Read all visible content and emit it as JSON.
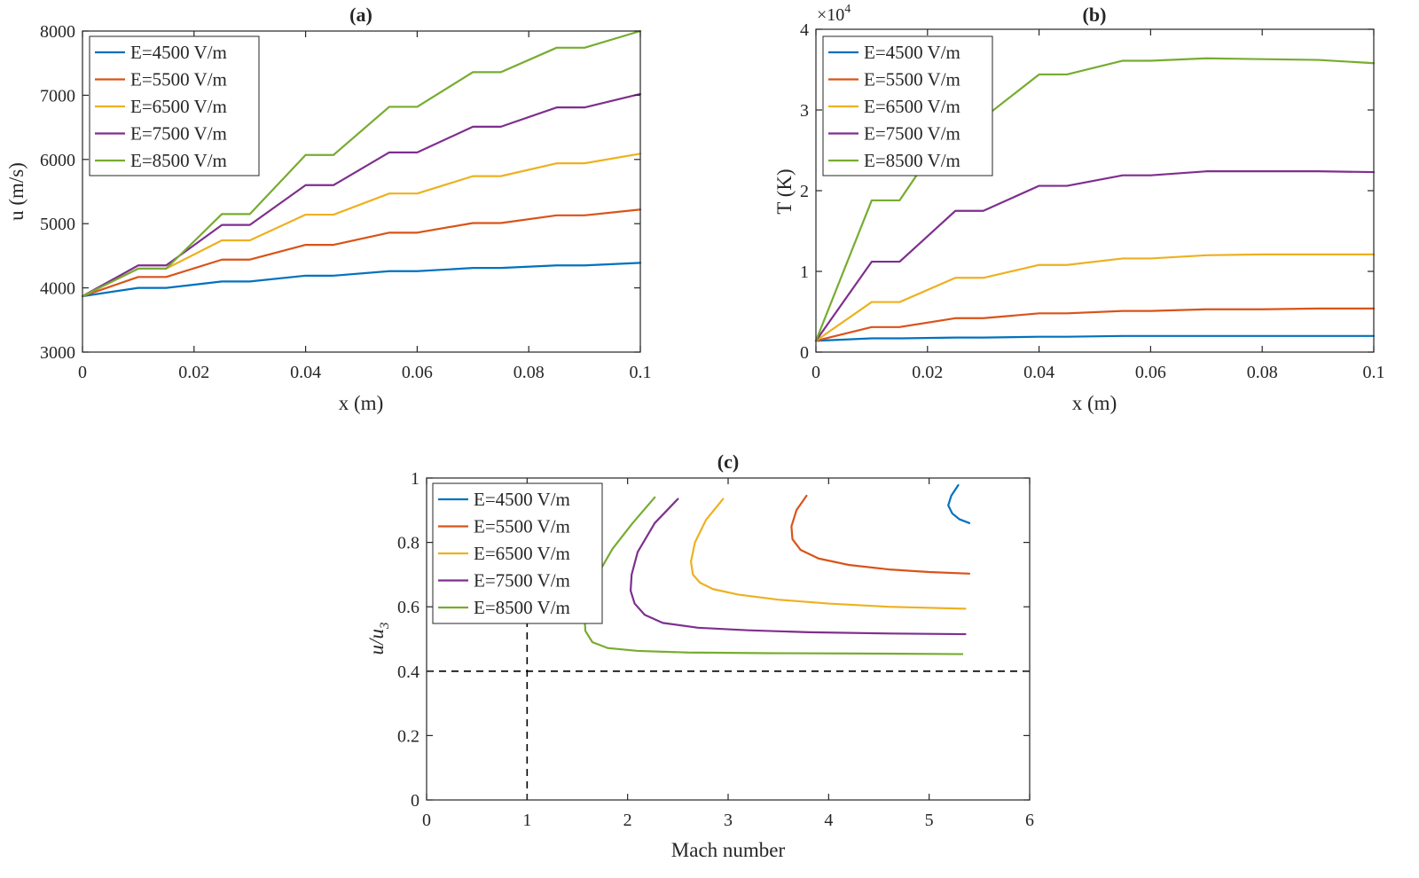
{
  "chart_data": [
    {
      "id": "a",
      "type": "line",
      "title": "(a)",
      "xlabel": "x (m)",
      "ylabel": "u (m/s)",
      "xlim": [
        0,
        0.1
      ],
      "ylim": [
        3000,
        8000
      ],
      "xticks": [
        0,
        0.02,
        0.04,
        0.06,
        0.08,
        0.1
      ],
      "xtick_labels": [
        "0",
        "0.02",
        "0.04",
        "0.06",
        "0.08",
        "0.1"
      ],
      "yticks": [
        3000,
        4000,
        5000,
        6000,
        7000,
        8000
      ],
      "ytick_labels": [
        "3000",
        "4000",
        "5000",
        "6000",
        "7000",
        "8000"
      ],
      "legend_position": "top-left",
      "series": [
        {
          "name": "E=4500 V/m",
          "color": "#0072BD",
          "x": [
            0,
            0.01,
            0.015,
            0.025,
            0.03,
            0.04,
            0.045,
            0.055,
            0.06,
            0.07,
            0.075,
            0.085,
            0.09,
            0.1
          ],
          "y": [
            3870,
            4000,
            4000,
            4100,
            4100,
            4190,
            4190,
            4260,
            4260,
            4310,
            4310,
            4350,
            4350,
            4390
          ]
        },
        {
          "name": "E=5500 V/m",
          "color": "#D95319",
          "x": [
            0,
            0.01,
            0.015,
            0.025,
            0.03,
            0.04,
            0.045,
            0.055,
            0.06,
            0.07,
            0.075,
            0.085,
            0.09,
            0.1
          ],
          "y": [
            3870,
            4170,
            4170,
            4440,
            4440,
            4670,
            4670,
            4860,
            4860,
            5010,
            5010,
            5130,
            5130,
            5220
          ]
        },
        {
          "name": "E=6500 V/m",
          "color": "#EDB120",
          "x": [
            0,
            0.01,
            0.015,
            0.025,
            0.03,
            0.04,
            0.045,
            0.055,
            0.06,
            0.07,
            0.075,
            0.085,
            0.09,
            0.1
          ],
          "y": [
            3870,
            4300,
            4300,
            4740,
            4740,
            5140,
            5140,
            5470,
            5470,
            5740,
            5740,
            5940,
            5940,
            6090
          ]
        },
        {
          "name": "E=7500 V/m",
          "color": "#7E2F8E",
          "x": [
            0,
            0.01,
            0.015,
            0.025,
            0.03,
            0.04,
            0.045,
            0.055,
            0.06,
            0.07,
            0.075,
            0.085,
            0.09,
            0.1
          ],
          "y": [
            3870,
            4350,
            4350,
            4980,
            4980,
            5600,
            5600,
            6110,
            6110,
            6510,
            6510,
            6810,
            6810,
            7020
          ]
        },
        {
          "name": "E=8500 V/m",
          "color": "#77AC30",
          "x": [
            0,
            0.01,
            0.015,
            0.025,
            0.03,
            0.04,
            0.045,
            0.055,
            0.06,
            0.07,
            0.075,
            0.085,
            0.09,
            0.1
          ],
          "y": [
            3870,
            4300,
            4300,
            5150,
            5150,
            6070,
            6070,
            6820,
            6820,
            7360,
            7360,
            7740,
            7740,
            8000
          ]
        }
      ]
    },
    {
      "id": "b",
      "type": "line",
      "title": "(b)",
      "xlabel": "x (m)",
      "ylabel": "T (K)",
      "exponent_label": "×10",
      "exponent_power": "4",
      "xlim": [
        0,
        0.1
      ],
      "ylim": [
        0,
        4
      ],
      "xticks": [
        0,
        0.02,
        0.04,
        0.06,
        0.08,
        0.1
      ],
      "xtick_labels": [
        "0",
        "0.02",
        "0.04",
        "0.06",
        "0.08",
        "0.1"
      ],
      "yticks": [
        0,
        1,
        2,
        3,
        4
      ],
      "ytick_labels": [
        "0",
        "1",
        "2",
        "3",
        "4"
      ],
      "legend_position": "top-left",
      "series": [
        {
          "name": "E=4500 V/m",
          "color": "#0072BD",
          "x": [
            0,
            0.01,
            0.015,
            0.025,
            0.03,
            0.04,
            0.045,
            0.055,
            0.06,
            0.07,
            0.08,
            0.09,
            0.1
          ],
          "y": [
            0.14,
            0.17,
            0.17,
            0.18,
            0.18,
            0.19,
            0.19,
            0.2,
            0.2,
            0.2,
            0.2,
            0.2,
            0.2
          ]
        },
        {
          "name": "E=5500 V/m",
          "color": "#D95319",
          "x": [
            0,
            0.01,
            0.015,
            0.025,
            0.03,
            0.04,
            0.045,
            0.055,
            0.06,
            0.07,
            0.08,
            0.09,
            0.1
          ],
          "y": [
            0.14,
            0.31,
            0.31,
            0.42,
            0.42,
            0.48,
            0.48,
            0.51,
            0.51,
            0.53,
            0.53,
            0.54,
            0.54
          ]
        },
        {
          "name": "E=6500 V/m",
          "color": "#EDB120",
          "x": [
            0,
            0.01,
            0.015,
            0.025,
            0.03,
            0.04,
            0.045,
            0.055,
            0.06,
            0.07,
            0.08,
            0.09,
            0.1
          ],
          "y": [
            0.14,
            0.62,
            0.62,
            0.92,
            0.92,
            1.08,
            1.08,
            1.16,
            1.16,
            1.2,
            1.21,
            1.21,
            1.21
          ]
        },
        {
          "name": "E=7500 V/m",
          "color": "#7E2F8E",
          "x": [
            0,
            0.01,
            0.015,
            0.025,
            0.03,
            0.04,
            0.045,
            0.055,
            0.06,
            0.07,
            0.08,
            0.09,
            0.1
          ],
          "y": [
            0.14,
            1.12,
            1.12,
            1.75,
            1.75,
            2.06,
            2.06,
            2.19,
            2.19,
            2.24,
            2.24,
            2.24,
            2.23
          ]
        },
        {
          "name": "E=8500 V/m",
          "color": "#77AC30",
          "x": [
            0,
            0.01,
            0.015,
            0.025,
            0.03,
            0.04,
            0.045,
            0.055,
            0.06,
            0.07,
            0.08,
            0.09,
            0.1
          ],
          "y": [
            0.14,
            1.88,
            1.88,
            2.9,
            2.9,
            3.44,
            3.44,
            3.61,
            3.61,
            3.64,
            3.63,
            3.62,
            3.58
          ]
        }
      ]
    },
    {
      "id": "c",
      "type": "line",
      "title": "(c)",
      "xlabel": "Mach number",
      "ylabel_main": "u/u",
      "ylabel_sub": "3",
      "xlim": [
        0,
        6
      ],
      "ylim": [
        0,
        1
      ],
      "xticks": [
        0,
        1,
        2,
        3,
        4,
        5,
        6
      ],
      "xtick_labels": [
        "0",
        "1",
        "2",
        "3",
        "4",
        "5",
        "6"
      ],
      "yticks": [
        0,
        0.2,
        0.4,
        0.6,
        0.8,
        1
      ],
      "ytick_labels": [
        "0",
        "0.2",
        "0.4",
        "0.6",
        "0.8",
        "1"
      ],
      "legend_position": "top-left",
      "reference_lines": {
        "x": 1,
        "y": 0.4,
        "style": "dashed",
        "color": "#000000"
      },
      "series": [
        {
          "name": "E=4500 V/m",
          "color": "#0072BD",
          "x": [
            5.29,
            5.22,
            5.19,
            5.23,
            5.3,
            5.4
          ],
          "y": [
            0.978,
            0.945,
            0.915,
            0.89,
            0.872,
            0.86
          ]
        },
        {
          "name": "E=5500 V/m",
          "color": "#D95319",
          "x": [
            3.78,
            3.68,
            3.63,
            3.64,
            3.72,
            3.9,
            4.2,
            4.6,
            5.0,
            5.4
          ],
          "y": [
            0.945,
            0.9,
            0.85,
            0.81,
            0.777,
            0.75,
            0.73,
            0.716,
            0.708,
            0.703
          ]
        },
        {
          "name": "E=6500 V/m",
          "color": "#EDB120",
          "x": [
            2.95,
            2.78,
            2.67,
            2.63,
            2.65,
            2.72,
            2.85,
            3.1,
            3.5,
            4.0,
            4.6,
            5.36
          ],
          "y": [
            0.935,
            0.87,
            0.8,
            0.74,
            0.7,
            0.675,
            0.655,
            0.638,
            0.622,
            0.61,
            0.6,
            0.594
          ]
        },
        {
          "name": "E=7500 V/m",
          "color": "#7E2F8E",
          "x": [
            2.5,
            2.27,
            2.1,
            2.04,
            2.03,
            2.07,
            2.17,
            2.35,
            2.7,
            3.2,
            3.8,
            4.6,
            5.36
          ],
          "y": [
            0.935,
            0.86,
            0.77,
            0.7,
            0.65,
            0.61,
            0.575,
            0.55,
            0.535,
            0.527,
            0.521,
            0.517,
            0.515
          ]
        },
        {
          "name": "E=8500 V/m",
          "color": "#77AC30",
          "x": [
            2.27,
            2.05,
            1.85,
            1.72,
            1.62,
            1.57,
            1.58,
            1.65,
            1.8,
            2.1,
            2.6,
            3.4,
            4.3,
            5.33
          ],
          "y": [
            0.94,
            0.86,
            0.78,
            0.71,
            0.64,
            0.575,
            0.525,
            0.49,
            0.472,
            0.463,
            0.458,
            0.456,
            0.455,
            0.453
          ]
        }
      ]
    }
  ]
}
